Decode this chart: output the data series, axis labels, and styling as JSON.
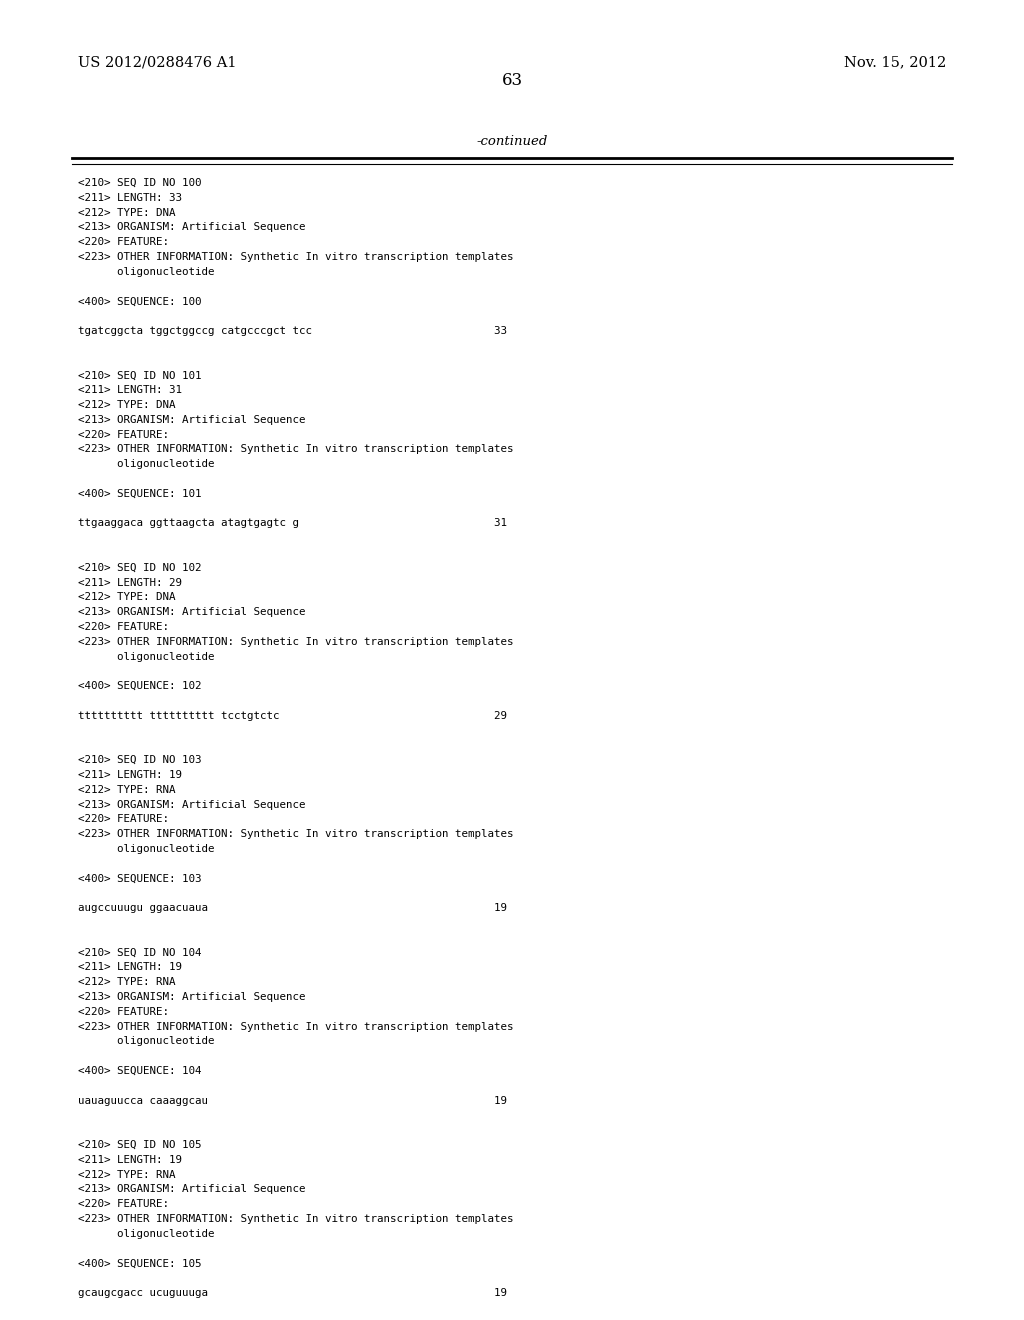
{
  "header_left": "US 2012/0288476 A1",
  "header_right": "Nov. 15, 2012",
  "page_number": "63",
  "continued_label": "-continued",
  "background_color": "#ffffff",
  "text_color": "#000000",
  "content": [
    "<210> SEQ ID NO 100",
    "<211> LENGTH: 33",
    "<212> TYPE: DNA",
    "<213> ORGANISM: Artificial Sequence",
    "<220> FEATURE:",
    "<223> OTHER INFORMATION: Synthetic In vitro transcription templates",
    "      oligonucleotide",
    "",
    "<400> SEQUENCE: 100",
    "",
    "tgatcggcta tggctggccg catgcccgct tcc                            33",
    "",
    "",
    "<210> SEQ ID NO 101",
    "<211> LENGTH: 31",
    "<212> TYPE: DNA",
    "<213> ORGANISM: Artificial Sequence",
    "<220> FEATURE:",
    "<223> OTHER INFORMATION: Synthetic In vitro transcription templates",
    "      oligonucleotide",
    "",
    "<400> SEQUENCE: 101",
    "",
    "ttgaaggaca ggttaagcta atagtgagtc g                              31",
    "",
    "",
    "<210> SEQ ID NO 102",
    "<211> LENGTH: 29",
    "<212> TYPE: DNA",
    "<213> ORGANISM: Artificial Sequence",
    "<220> FEATURE:",
    "<223> OTHER INFORMATION: Synthetic In vitro transcription templates",
    "      oligonucleotide",
    "",
    "<400> SEQUENCE: 102",
    "",
    "tttttttttt tttttttttt tcctgtctc                                 29",
    "",
    "",
    "<210> SEQ ID NO 103",
    "<211> LENGTH: 19",
    "<212> TYPE: RNA",
    "<213> ORGANISM: Artificial Sequence",
    "<220> FEATURE:",
    "<223> OTHER INFORMATION: Synthetic In vitro transcription templates",
    "      oligonucleotide",
    "",
    "<400> SEQUENCE: 103",
    "",
    "augccuuugu ggaacuaua                                            19",
    "",
    "",
    "<210> SEQ ID NO 104",
    "<211> LENGTH: 19",
    "<212> TYPE: RNA",
    "<213> ORGANISM: Artificial Sequence",
    "<220> FEATURE:",
    "<223> OTHER INFORMATION: Synthetic In vitro transcription templates",
    "      oligonucleotide",
    "",
    "<400> SEQUENCE: 104",
    "",
    "uauaguucca caaaggcau                                            19",
    "",
    "",
    "<210> SEQ ID NO 105",
    "<211> LENGTH: 19",
    "<212> TYPE: RNA",
    "<213> ORGANISM: Artificial Sequence",
    "<220> FEATURE:",
    "<223> OTHER INFORMATION: Synthetic In vitro transcription templates",
    "      oligonucleotide",
    "",
    "<400> SEQUENCE: 105",
    "",
    "gcaugcgacc ucuguuuga                                            19"
  ],
  "figwidth": 10.24,
  "figheight": 13.2,
  "dpi": 100
}
